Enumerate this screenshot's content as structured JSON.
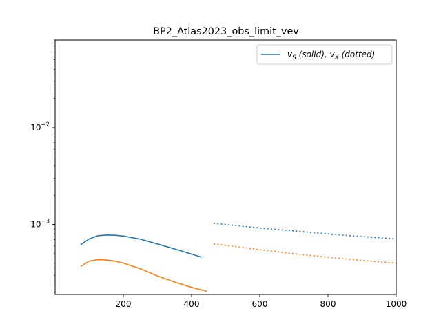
{
  "chart_data": {
    "type": "line",
    "title": "BP2_Atlas2023_obs_limit_vev",
    "xlabel": "",
    "ylabel": "",
    "xlim": [
      0,
      1000
    ],
    "ylim": [
      0.00019,
      0.08
    ],
    "yscale": "log",
    "x_ticks": [
      200,
      400,
      600,
      800,
      1000
    ],
    "x_tick_labels": [
      "200",
      "400",
      "600",
      "800",
      "1000"
    ],
    "y_ticks": [
      0.001,
      0.01
    ],
    "y_tick_labels": [
      "10^{-3}",
      "10^{-2}"
    ],
    "grid": false,
    "legend": {
      "placement": "top-right",
      "entries": [
        {
          "text_v": "v",
          "text_sub": "S",
          "text_mid": " (solid), ",
          "text_v2": "v",
          "text_sub2": "X",
          "text_end": " (dotted)",
          "color": "#1f77b4"
        }
      ]
    },
    "series": [
      {
        "color": "#1f77b4",
        "style": "solid",
        "x": [
          75,
          100,
          125,
          150,
          175,
          200,
          250,
          300,
          350,
          400,
          430
        ],
        "y": [
          0.00062,
          0.00071,
          0.000765,
          0.00078,
          0.000775,
          0.00076,
          0.000705,
          0.00063,
          0.00056,
          0.000495,
          0.00046
        ]
      },
      {
        "color": "#ff7f0e",
        "style": "solid",
        "x": [
          75,
          100,
          125,
          150,
          175,
          200,
          250,
          300,
          350,
          400,
          445
        ],
        "y": [
          0.00037,
          0.00042,
          0.000435,
          0.00043,
          0.00042,
          0.0004,
          0.00035,
          0.000295,
          0.000255,
          0.000225,
          0.000205
        ]
      },
      {
        "color": "#1f77b4",
        "style": "dotted",
        "x": [
          465,
          500,
          600,
          700,
          800,
          900,
          1000
        ],
        "y": [
          0.00103,
          0.001,
          0.00092,
          0.00086,
          0.0008,
          0.00075,
          0.00071
        ]
      },
      {
        "color": "#ff7f0e",
        "style": "dotted",
        "x": [
          465,
          500,
          600,
          700,
          800,
          900,
          1000
        ],
        "y": [
          0.00063,
          0.00061,
          0.00055,
          0.0005,
          0.00046,
          0.000425,
          0.0004
        ]
      }
    ]
  }
}
